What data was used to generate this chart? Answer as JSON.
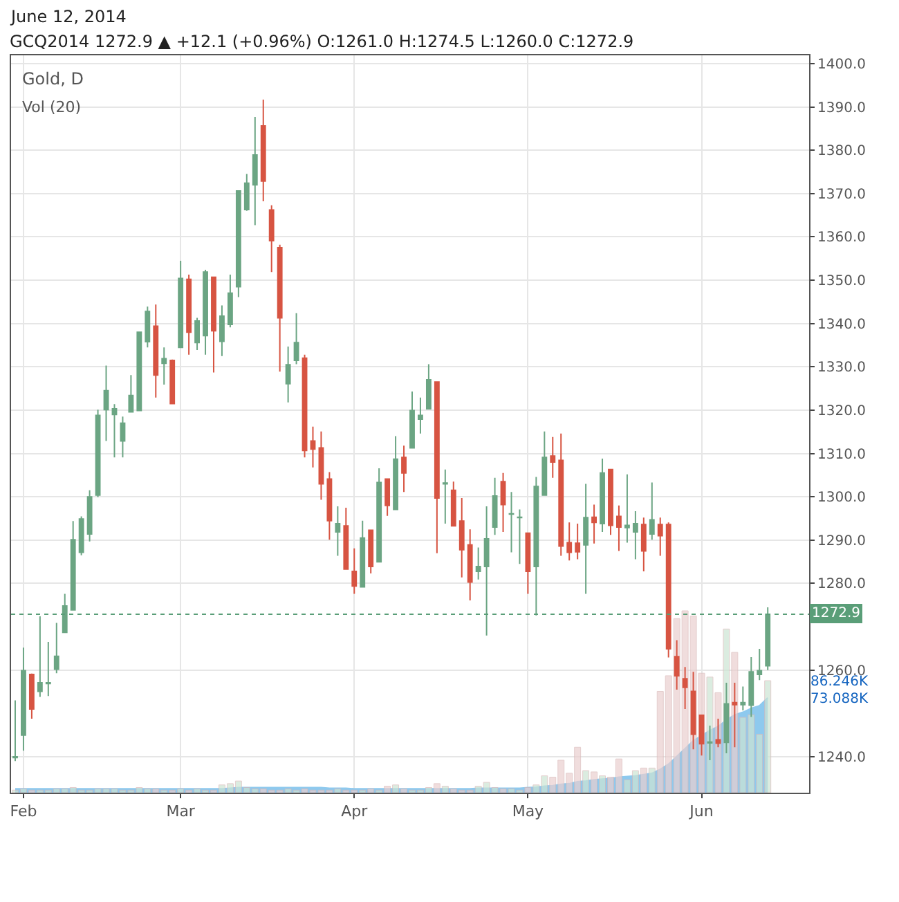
{
  "chart_data": {
    "type": "candlestick",
    "title": "June 12, 2014",
    "subtitle": "GCQ2014 1272.9 ▲ +12.1 (+0.96%) O:1261.0 H:1274.5 L:1260.0 C:1272.9",
    "annotations": [
      "Gold, D",
      "Vol (20)"
    ],
    "categories": [
      null,
      "Feb",
      null,
      null,
      null,
      null,
      null,
      null,
      null,
      null,
      null,
      null,
      null,
      null,
      null,
      null,
      null,
      null,
      null,
      null,
      "Mar",
      null,
      null,
      null,
      null,
      null,
      null,
      null,
      null,
      null,
      null,
      null,
      null,
      null,
      null,
      null,
      null,
      null,
      null,
      null,
      null,
      "Apr",
      null,
      null,
      null,
      null,
      null,
      null,
      null,
      null,
      null,
      null,
      null,
      null,
      null,
      null,
      null,
      null,
      null,
      null,
      null,
      null,
      "May",
      null,
      null,
      null,
      null,
      null,
      null,
      null,
      null,
      null,
      null,
      null,
      null,
      null,
      null,
      null,
      null,
      null,
      null,
      null,
      null,
      "Jun",
      null,
      null,
      null,
      null,
      null,
      null,
      null,
      null
    ],
    "ohlc": [
      [
        1239.8,
        1253,
        1239,
        1240
      ],
      [
        1245.0,
        1265.2,
        1241.4,
        1259.9
      ],
      [
        1259.0,
        1259.2,
        1248.8,
        1251.0
      ],
      [
        1255.1,
        1272.4,
        1253.8,
        1257.1
      ],
      [
        1256.9,
        1266.5,
        1254.0,
        1257.1
      ],
      [
        1260.2,
        1270.9,
        1259.3,
        1263.2
      ],
      [
        1268.7,
        1277.6,
        1268.7,
        1274.8
      ],
      [
        1273.9,
        1294.4,
        1273.9,
        1290.1
      ],
      [
        1287.2,
        1295.5,
        1286.5,
        1294.9
      ],
      [
        1291.4,
        1301.5,
        1289.7,
        1300.0
      ],
      [
        1300.4,
        1320.1,
        1299.9,
        1318.8
      ],
      [
        1320.1,
        1330.3,
        1312.9,
        1324.5
      ],
      [
        1319.0,
        1321.4,
        1309.1,
        1320.3
      ],
      [
        1312.9,
        1318.5,
        1309.1,
        1317.0
      ],
      [
        1319.6,
        1328.1,
        1319.6,
        1323.4
      ],
      [
        1319.9,
        1338.0,
        1319.9,
        1338.0
      ],
      [
        1335.8,
        1343.9,
        1334.5,
        1342.8
      ],
      [
        1339.4,
        1344.4,
        1322.9,
        1328.1
      ],
      [
        1330.8,
        1334.5,
        1325.9,
        1331.9
      ],
      [
        1331.5,
        1331.7,
        1321.5,
        1321.5
      ],
      [
        1334.5,
        1354.5,
        1334.5,
        1350.4
      ],
      [
        1350.2,
        1351.3,
        1332.8,
        1338.0
      ],
      [
        1335.6,
        1341.3,
        1333.9,
        1340.6
      ],
      [
        1337.2,
        1352.4,
        1332.8,
        1351.9
      ],
      [
        1350.7,
        1350.7,
        1328.7,
        1338.3
      ],
      [
        1335.9,
        1344.2,
        1332.5,
        1341.7
      ],
      [
        1339.8,
        1351.3,
        1339.1,
        1347.0
      ],
      [
        1348.5,
        1370.6,
        1346.1,
        1370.6
      ],
      [
        1366.3,
        1374.5,
        1366.0,
        1372.4
      ],
      [
        1372.0,
        1387.7,
        1362.7,
        1378.9
      ],
      [
        1385.6,
        1391.7,
        1368.2,
        1372.9
      ],
      [
        1366.2,
        1367.3,
        1351.9,
        1359.1
      ],
      [
        1357.5,
        1358.2,
        1328.9,
        1341.3
      ],
      [
        1326.1,
        1334.7,
        1321.8,
        1330.5
      ],
      [
        1331.5,
        1342.4,
        1330.6,
        1335.6
      ],
      [
        1332.0,
        1332.8,
        1309.1,
        1310.7
      ],
      [
        1312.9,
        1316.2,
        1306.8,
        1311.0
      ],
      [
        1311.3,
        1315.1,
        1299.3,
        1303.0
      ],
      [
        1304.1,
        1305.7,
        1290.1,
        1294.5
      ],
      [
        1291.9,
        1297.8,
        1286.4,
        1293.8
      ],
      [
        1293.3,
        1297.5,
        1283.3,
        1283.3
      ],
      [
        1282.8,
        1288.1,
        1277.6,
        1279.4
      ],
      [
        1279.2,
        1294.5,
        1279.2,
        1290.5
      ],
      [
        1292.3,
        1292.3,
        1282.3,
        1283.9
      ],
      [
        1285.0,
        1306.6,
        1285.0,
        1303.3
      ],
      [
        1304.1,
        1304.1,
        1295.6,
        1298.0
      ],
      [
        1297.1,
        1314.0,
        1297.1,
        1308.7
      ],
      [
        1309.1,
        1311.8,
        1301.1,
        1305.5
      ],
      [
        1311.3,
        1324.3,
        1311.3,
        1319.9
      ],
      [
        1317.9,
        1322.9,
        1314.6,
        1318.8
      ],
      [
        1320.3,
        1330.6,
        1320.3,
        1327.0
      ],
      [
        1326.5,
        1326.5,
        1287.0,
        1299.7
      ],
      [
        1303.0,
        1306.3,
        1293.8,
        1303.2
      ],
      [
        1301.5,
        1303.5,
        1293.3,
        1293.3
      ],
      [
        1294.4,
        1299.7,
        1281.4,
        1287.8
      ],
      [
        1288.9,
        1292.5,
        1276.1,
        1280.3
      ],
      [
        1282.8,
        1288.3,
        1280.9,
        1283.9
      ],
      [
        1283.9,
        1297.8,
        1268.0,
        1290.3
      ],
      [
        1293.0,
        1304.4,
        1291.2,
        1300.2
      ],
      [
        1303.5,
        1305.5,
        1291.9,
        1298.2
      ],
      [
        1296.0,
        1301.1,
        1287.2,
        1296.1
      ],
      [
        1295.2,
        1297.1,
        1284.5,
        1295.3
      ],
      [
        1291.6,
        1291.6,
        1277.6,
        1282.8
      ],
      [
        1283.9,
        1304.6,
        1272.6,
        1302.4
      ],
      [
        1300.4,
        1315.1,
        1300.4,
        1309.1
      ],
      [
        1309.4,
        1313.8,
        1304.4,
        1308.0
      ],
      [
        1308.4,
        1314.6,
        1286.4,
        1288.6
      ],
      [
        1289.4,
        1294.1,
        1285.3,
        1287.2
      ],
      [
        1289.3,
        1293.8,
        1285.6,
        1287.3
      ],
      [
        1288.9,
        1303.0,
        1277.6,
        1295.2
      ],
      [
        1295.3,
        1298.2,
        1289.2,
        1294.1
      ],
      [
        1293.8,
        1308.8,
        1291.9,
        1305.5
      ],
      [
        1306.3,
        1306.3,
        1291.2,
        1293.4
      ],
      [
        1295.5,
        1298.0,
        1287.5,
        1293.0
      ],
      [
        1292.9,
        1305.2,
        1289.4,
        1293.4
      ],
      [
        1291.9,
        1296.7,
        1285.6,
        1293.8
      ],
      [
        1293.6,
        1295.2,
        1282.8,
        1287.5
      ],
      [
        1291.4,
        1303.3,
        1290.1,
        1294.7
      ],
      [
        1293.6,
        1295.2,
        1286.4,
        1291.0
      ],
      [
        1293.6,
        1294.1,
        1262.9,
        1264.9
      ],
      [
        1263.1,
        1266.9,
        1255.5,
        1258.7
      ],
      [
        1258.0,
        1260.7,
        1251.0,
        1256.0
      ],
      [
        1255.1,
        1259.6,
        1241.7,
        1245.2
      ],
      [
        1249.6,
        1249.6,
        1240.3,
        1243.0
      ],
      [
        1243.2,
        1247.2,
        1239.2,
        1243.4
      ],
      [
        1243.9,
        1248.8,
        1242.2,
        1243.1
      ],
      [
        1243.3,
        1257.1,
        1240.8,
        1252.2
      ],
      [
        1252.5,
        1257.1,
        1242.2,
        1252.0
      ],
      [
        1252.0,
        1256.2,
        1250.7,
        1252.5
      ],
      [
        1251.9,
        1263.0,
        1249.2,
        1259.6
      ],
      [
        1259.0,
        1264.9,
        1257.7,
        1259.9
      ],
      [
        1261.0,
        1274.5,
        1260.0,
        1272.9
      ]
    ],
    "colors": [
      "#6ba583",
      "#6ba583",
      "#d75442",
      "#6ba583",
      "#6ba583",
      "#6ba583",
      "#6ba583",
      "#6ba583",
      "#6ba583",
      "#6ba583",
      "#6ba583",
      "#6ba583",
      "#6ba583",
      "#6ba583",
      "#6ba583",
      "#6ba583",
      "#6ba583",
      "#d75442",
      "#6ba583",
      "#d75442",
      "#6ba583",
      "#d75442",
      "#6ba583",
      "#6ba583",
      "#d75442",
      "#6ba583",
      "#6ba583",
      "#6ba583",
      "#6ba583",
      "#6ba583",
      "#d75442",
      "#d75442",
      "#d75442",
      "#6ba583",
      "#6ba583",
      "#d75442",
      "#d75442",
      "#d75442",
      "#d75442",
      "#6ba583",
      "#d75442",
      "#d75442",
      "#6ba583",
      "#d75442",
      "#6ba583",
      "#d75442",
      "#6ba583",
      "#d75442",
      "#6ba583",
      "#6ba583",
      "#6ba583",
      "#d75442",
      "#6ba583",
      "#d75442",
      "#d75442",
      "#d75442",
      "#6ba583",
      "#6ba583",
      "#6ba583",
      "#d75442",
      "#6ba583",
      "#6ba583",
      "#d75442",
      "#6ba583",
      "#6ba583",
      "#d75442",
      "#d75442",
      "#d75442",
      "#d75442",
      "#6ba583",
      "#d75442",
      "#6ba583",
      "#d75442",
      "#d75442",
      "#6ba583",
      "#6ba583",
      "#d75442",
      "#6ba583",
      "#d75442",
      "#d75442",
      "#d75442",
      "#d75442",
      "#d75442",
      "#d75442",
      "#6ba583",
      "#d75442",
      "#6ba583",
      "#d75442",
      "#6ba583",
      "#6ba583",
      "#6ba583",
      "#6ba583"
    ],
    "series": [
      {
        "type": "bar",
        "axis": "y2",
        "values": [
          2,
          3,
          2,
          2,
          2,
          3,
          3,
          4,
          2,
          2,
          3,
          3,
          3,
          2,
          2,
          4,
          3,
          3,
          2,
          2,
          3,
          2,
          3,
          2,
          2,
          6,
          7,
          9,
          4,
          3,
          3,
          2,
          2,
          3,
          2,
          3,
          2,
          2,
          2,
          3,
          2,
          2,
          2,
          3,
          2,
          5,
          6,
          3,
          2,
          2,
          4,
          7,
          5,
          3,
          2,
          2,
          5,
          8,
          4,
          3,
          3,
          2,
          4,
          6,
          13,
          12,
          25,
          15,
          35,
          17,
          16,
          13,
          12,
          26,
          10,
          17,
          19,
          19,
          78,
          90,
          134,
          140,
          136,
          92,
          89,
          77,
          126,
          108,
          58,
          60,
          45,
          86.246
        ],
        "colors": [
          "#cde5d3",
          "#cde5d3",
          "#ebcfcf",
          "#cde5d3",
          "#cde5d3",
          "#cde5d3",
          "#cde5d3",
          "#cde5d3",
          "#cde5d3",
          "#cde5d3",
          "#cde5d3",
          "#cde5d3",
          "#cde5d3",
          "#cde5d3",
          "#cde5d3",
          "#cde5d3",
          "#cde5d3",
          "#ebcfcf",
          "#cde5d3",
          "#ebcfcf",
          "#cde5d3",
          "#ebcfcf",
          "#cde5d3",
          "#cde5d3",
          "#ebcfcf",
          "#cde5d3",
          "#cde5d3",
          "#cde5d3",
          "#cde5d3",
          "#cde5d3",
          "#ebcfcf",
          "#ebcfcf",
          "#ebcfcf",
          "#cde5d3",
          "#cde5d3",
          "#ebcfcf",
          "#ebcfcf",
          "#ebcfcf",
          "#ebcfcf",
          "#cde5d3",
          "#ebcfcf",
          "#ebcfcf",
          "#cde5d3",
          "#ebcfcf",
          "#cde5d3",
          "#ebcfcf",
          "#cde5d3",
          "#ebcfcf",
          "#cde5d3",
          "#cde5d3",
          "#cde5d3",
          "#ebcfcf",
          "#cde5d3",
          "#ebcfcf",
          "#ebcfcf",
          "#ebcfcf",
          "#cde5d3",
          "#cde5d3",
          "#cde5d3",
          "#ebcfcf",
          "#cde5d3",
          "#cde5d3",
          "#ebcfcf",
          "#cde5d3",
          "#cde5d3",
          "#ebcfcf",
          "#ebcfcf",
          "#ebcfcf",
          "#ebcfcf",
          "#cde5d3",
          "#ebcfcf",
          "#cde5d3",
          "#ebcfcf",
          "#ebcfcf",
          "#cde5d3",
          "#cde5d3",
          "#ebcfcf",
          "#cde5d3",
          "#ebcfcf",
          "#ebcfcf",
          "#ebcfcf",
          "#ebcfcf",
          "#ebcfcf",
          "#ebcfcf",
          "#cde5d3",
          "#ebcfcf",
          "#cde5d3",
          "#ebcfcf",
          "#cde5d3",
          "#cde5d3",
          "#cde5d3",
          "#cde5d3"
        ]
      },
      {
        "type": "area",
        "axis": "y2",
        "color": "#8ec9ee",
        "values": [
          3,
          3,
          3,
          3,
          3,
          3,
          3,
          3,
          3,
          3,
          3,
          3,
          3,
          3,
          3,
          3,
          3,
          3,
          3,
          3,
          3,
          3,
          3,
          3,
          3,
          3,
          3.5,
          4,
          4,
          4,
          4,
          4,
          4,
          4,
          4,
          4,
          4,
          4,
          3.5,
          3.5,
          3.5,
          3,
          3,
          3,
          3,
          3,
          3,
          3,
          3,
          3,
          3,
          3,
          3,
          3,
          3,
          3,
          3.5,
          3.5,
          3.5,
          3.5,
          3.5,
          3.5,
          4,
          4.3,
          5,
          5.5,
          6.5,
          7,
          8.5,
          9,
          10,
          10.5,
          11,
          12,
          12.5,
          13,
          14,
          15,
          18,
          22,
          28,
          34,
          40,
          44,
          48,
          51,
          56,
          60,
          62,
          65,
          67,
          73.088
        ]
      }
    ],
    "ylim": [
      1231.7,
      1401.9
    ],
    "yticks": [
      {
        "value": 1240,
        "label": "1240.0"
      },
      {
        "value": 1260,
        "label": "1260.0"
      },
      {
        "value": 1280,
        "label": "1280.0"
      },
      {
        "value": 1290,
        "label": "1290.0"
      },
      {
        "value": 1300,
        "label": "1300.0"
      },
      {
        "value": 1310,
        "label": "1310.0"
      },
      {
        "value": 1320,
        "label": "1320.0"
      },
      {
        "value": 1330,
        "label": "1330.0"
      },
      {
        "value": 1340,
        "label": "1340.0"
      },
      {
        "value": 1350,
        "label": "1350.0"
      },
      {
        "value": 1360,
        "label": "1360.0"
      },
      {
        "value": 1370,
        "label": "1370.0"
      },
      {
        "value": 1380,
        "label": "1380.0"
      },
      {
        "value": 1390,
        "label": "1390.0"
      },
      {
        "value": 1400,
        "label": "1400.0"
      }
    ],
    "y2lim": [
      0,
      567.5
    ],
    "y2ticks": [
      {
        "value": 73.088,
        "label": "73.088K"
      },
      {
        "value": 86.246,
        "label": "86.246K"
      }
    ],
    "ref_lines": [
      {
        "axis": "y",
        "value": 1272.9,
        "label": "1272.9",
        "color": "#5a9e78",
        "line_style": "dotted"
      }
    ],
    "grid": true
  }
}
